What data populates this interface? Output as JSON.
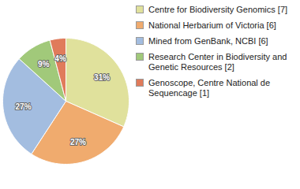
{
  "chart_data": {
    "type": "pie",
    "categories": [
      "Centre for Biodiversity Genomics [7]",
      "National Herbarium of Victoria [6]",
      "Mined from GenBank, NCBI [6]",
      "Research Center in Biodiversity and Genetic Resources [2]",
      "Genoscope, Centre National de Sequencage [1]"
    ],
    "values": [
      31,
      27,
      27,
      9,
      4
    ],
    "value_labels": [
      "31%",
      "27%",
      "27%",
      "9%",
      "4%"
    ],
    "colors": [
      "#e0e19c",
      "#f0ab6e",
      "#a3bde0",
      "#a1c97a",
      "#e07b5b"
    ],
    "data_labels": true,
    "legend": "right"
  }
}
